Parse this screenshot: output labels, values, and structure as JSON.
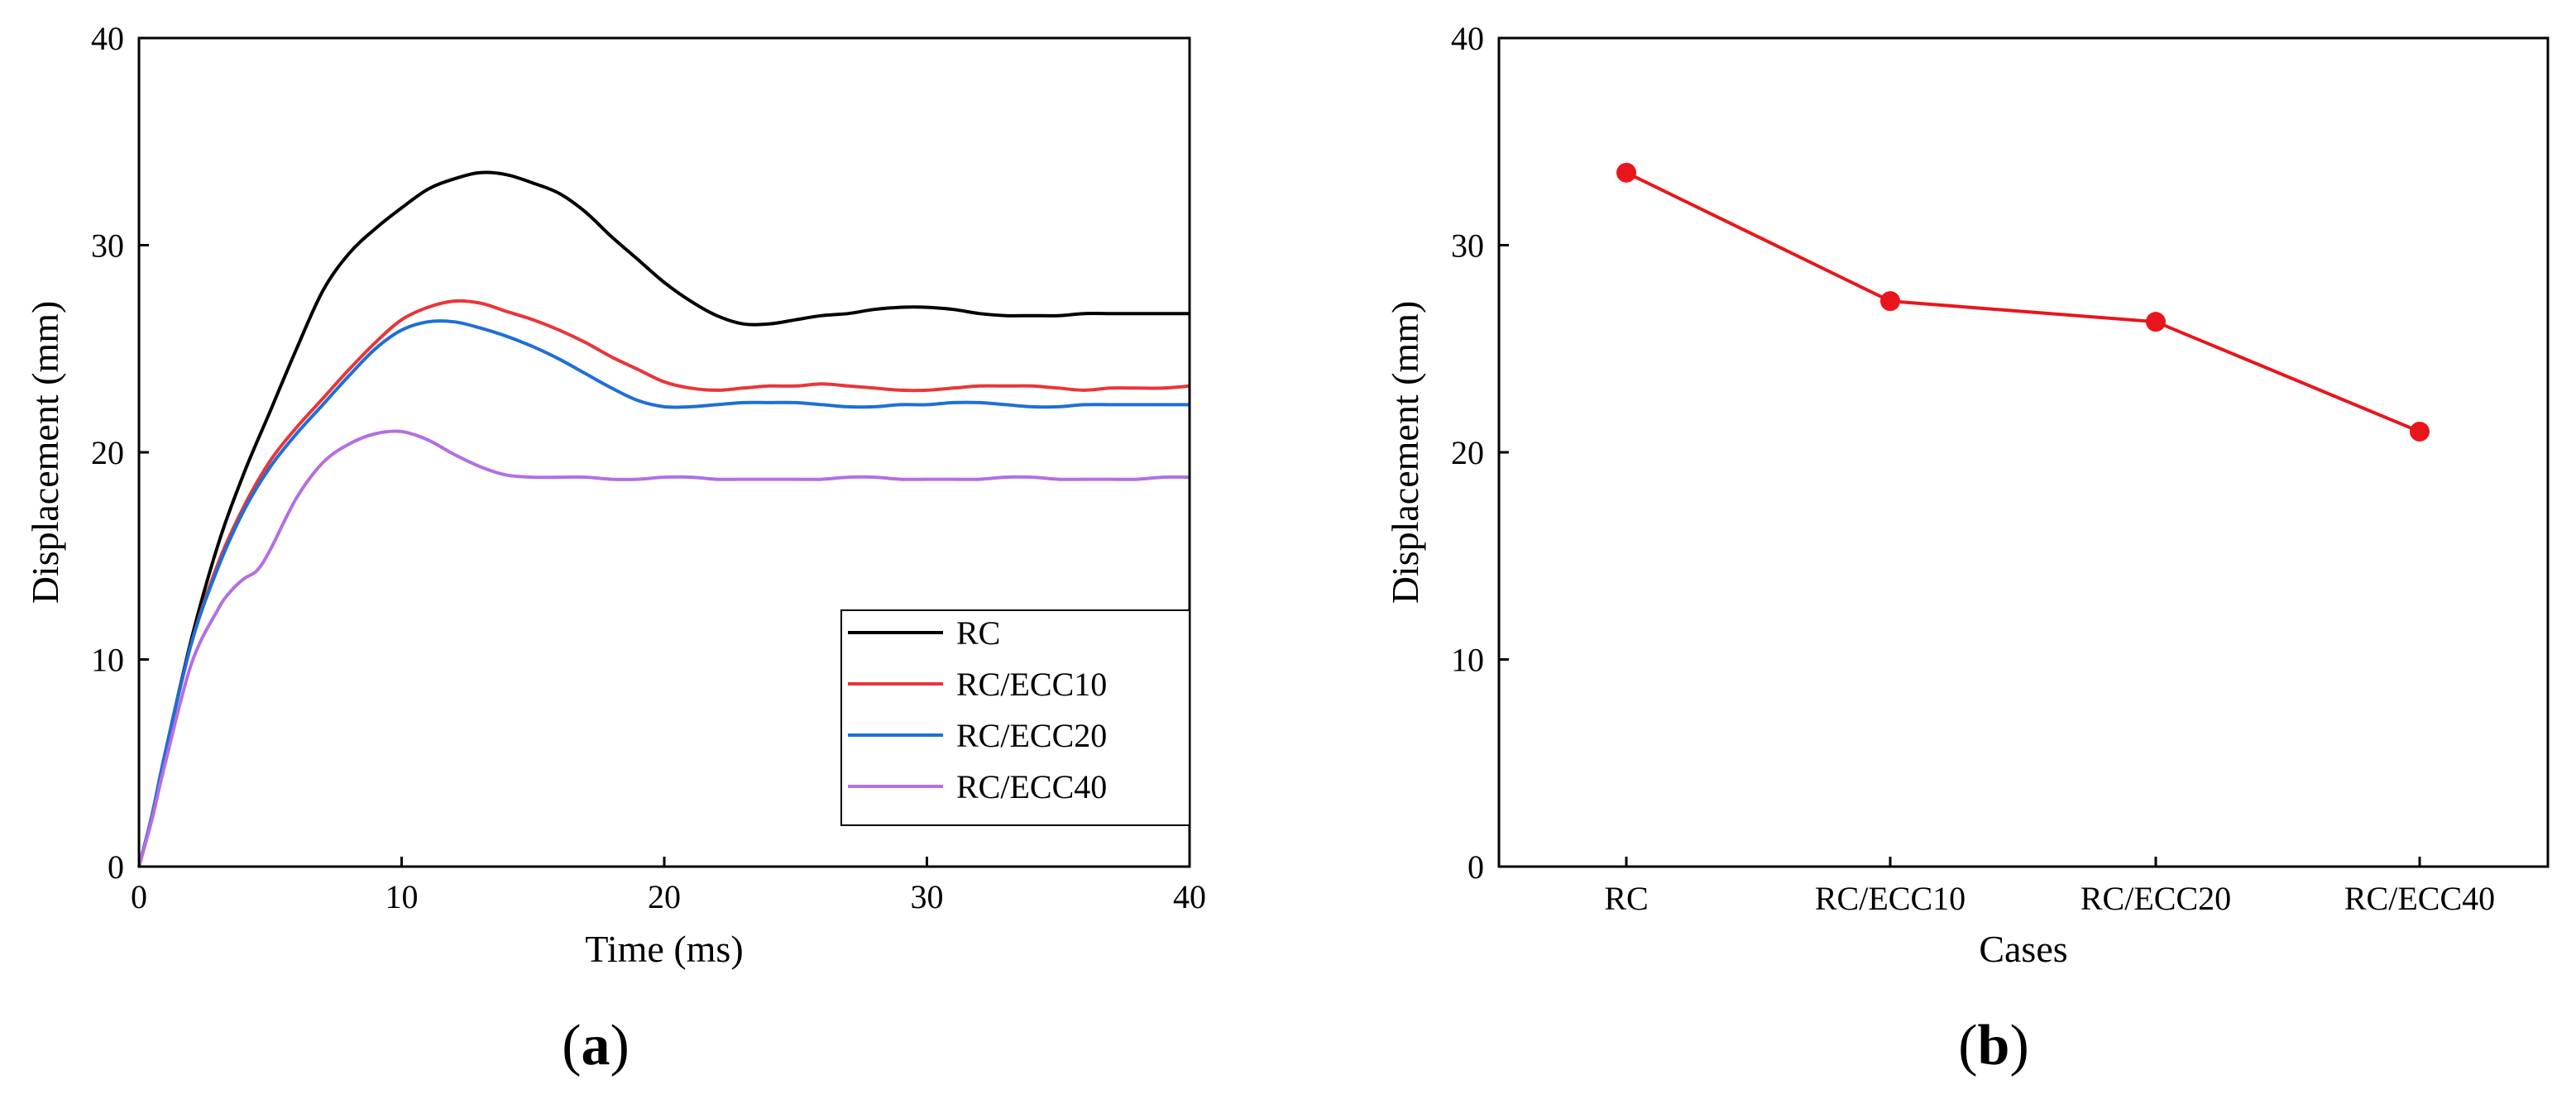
{
  "chart_data": [
    {
      "type": "line",
      "panel_label": "a",
      "xlabel": "Time (ms)",
      "ylabel": "Displacement (mm)",
      "xlim": [
        0,
        40
      ],
      "ylim": [
        0,
        40
      ],
      "xticks": [
        0,
        10,
        20,
        30,
        40
      ],
      "yticks": [
        0,
        10,
        20,
        30,
        40
      ],
      "legend_position": "bottom-right",
      "series": [
        {
          "name": "RC",
          "color": "#000000",
          "x": [
            0,
            0.5,
            1,
            2,
            3,
            4,
            5,
            6,
            7,
            8,
            9,
            10,
            11,
            12,
            13,
            14,
            15,
            16,
            17,
            18,
            19,
            20,
            21,
            22,
            23,
            24,
            25,
            26,
            27,
            28,
            29,
            30,
            31,
            32,
            33,
            34,
            35,
            36,
            37,
            38,
            39,
            40
          ],
          "y": [
            0,
            2.5,
            5.5,
            11,
            15.5,
            19,
            22,
            25,
            27.8,
            29.6,
            30.8,
            31.8,
            32.7,
            33.2,
            33.5,
            33.4,
            33,
            32.5,
            31.6,
            30.4,
            29.3,
            28.2,
            27.3,
            26.6,
            26.2,
            26.2,
            26.4,
            26.6,
            26.7,
            26.9,
            27,
            27,
            26.9,
            26.7,
            26.6,
            26.6,
            26.6,
            26.7,
            26.7,
            26.7,
            26.7,
            26.7
          ]
        },
        {
          "name": "RC/ECC10",
          "color": "#e8363a",
          "x": [
            0,
            0.5,
            1,
            2,
            3,
            4,
            5,
            6,
            7,
            8,
            9,
            10,
            11,
            12,
            13,
            14,
            15,
            16,
            17,
            18,
            19,
            20,
            21,
            22,
            23,
            24,
            25,
            26,
            27,
            28,
            29,
            30,
            31,
            32,
            33,
            34,
            35,
            36,
            37,
            38,
            39,
            40
          ],
          "y": [
            0,
            2.5,
            5.5,
            10.8,
            14.6,
            17.4,
            19.6,
            21.2,
            22.6,
            24,
            25.3,
            26.4,
            27,
            27.3,
            27.2,
            26.8,
            26.4,
            25.9,
            25.3,
            24.6,
            24,
            23.4,
            23.1,
            23,
            23.1,
            23.2,
            23.2,
            23.3,
            23.2,
            23.1,
            23,
            23,
            23.1,
            23.2,
            23.2,
            23.2,
            23.1,
            23,
            23.1,
            23.1,
            23.1,
            23.2
          ]
        },
        {
          "name": "RC/ECC20",
          "color": "#1f6fd6",
          "x": [
            0,
            0.5,
            1,
            2,
            3,
            4,
            5,
            6,
            7,
            8,
            9,
            10,
            11,
            12,
            13,
            14,
            15,
            16,
            17,
            18,
            19,
            20,
            21,
            22,
            23,
            24,
            25,
            26,
            27,
            28,
            29,
            30,
            31,
            32,
            33,
            34,
            35,
            36,
            37,
            38,
            39,
            40
          ],
          "y": [
            0,
            2.5,
            5.5,
            10.8,
            14.4,
            17.2,
            19.3,
            20.9,
            22.3,
            23.7,
            25,
            25.9,
            26.3,
            26.3,
            26,
            25.6,
            25.1,
            24.5,
            23.8,
            23.1,
            22.5,
            22.2,
            22.2,
            22.3,
            22.4,
            22.4,
            22.4,
            22.3,
            22.2,
            22.2,
            22.3,
            22.3,
            22.4,
            22.4,
            22.3,
            22.2,
            22.2,
            22.3,
            22.3,
            22.3,
            22.3,
            22.3
          ]
        },
        {
          "name": "RC/ECC40",
          "color": "#b36fe3",
          "x": [
            0,
            0.5,
            1,
            2,
            3,
            3.5,
            4,
            4.5,
            5,
            6,
            7,
            8,
            9,
            10,
            11,
            12,
            13,
            14,
            15,
            16,
            17,
            18,
            19,
            20,
            21,
            22,
            23,
            24,
            25,
            26,
            27,
            28,
            29,
            30,
            31,
            32,
            33,
            34,
            35,
            36,
            37,
            38,
            39,
            40
          ],
          "y": [
            0,
            2.3,
            5,
            9.8,
            12.4,
            13.3,
            13.9,
            14.3,
            15.3,
            17.8,
            19.5,
            20.4,
            20.9,
            21,
            20.6,
            19.9,
            19.3,
            18.9,
            18.8,
            18.8,
            18.8,
            18.7,
            18.7,
            18.8,
            18.8,
            18.7,
            18.7,
            18.7,
            18.7,
            18.7,
            18.8,
            18.8,
            18.7,
            18.7,
            18.7,
            18.7,
            18.8,
            18.8,
            18.7,
            18.7,
            18.7,
            18.7,
            18.8,
            18.8
          ]
        }
      ]
    },
    {
      "type": "line",
      "panel_label": "b",
      "xlabel": "Cases",
      "ylabel": "Displacement (mm)",
      "ylim": [
        0,
        40
      ],
      "yticks": [
        0,
        10,
        20,
        30,
        40
      ],
      "categories": [
        "RC",
        "RC/ECC10",
        "RC/ECC20",
        "RC/ECC40"
      ],
      "series": [
        {
          "name": "Displacement",
          "color": "#e8161c",
          "marker": "circle",
          "values": [
            33.5,
            27.3,
            26.3,
            21.0
          ]
        }
      ]
    }
  ]
}
